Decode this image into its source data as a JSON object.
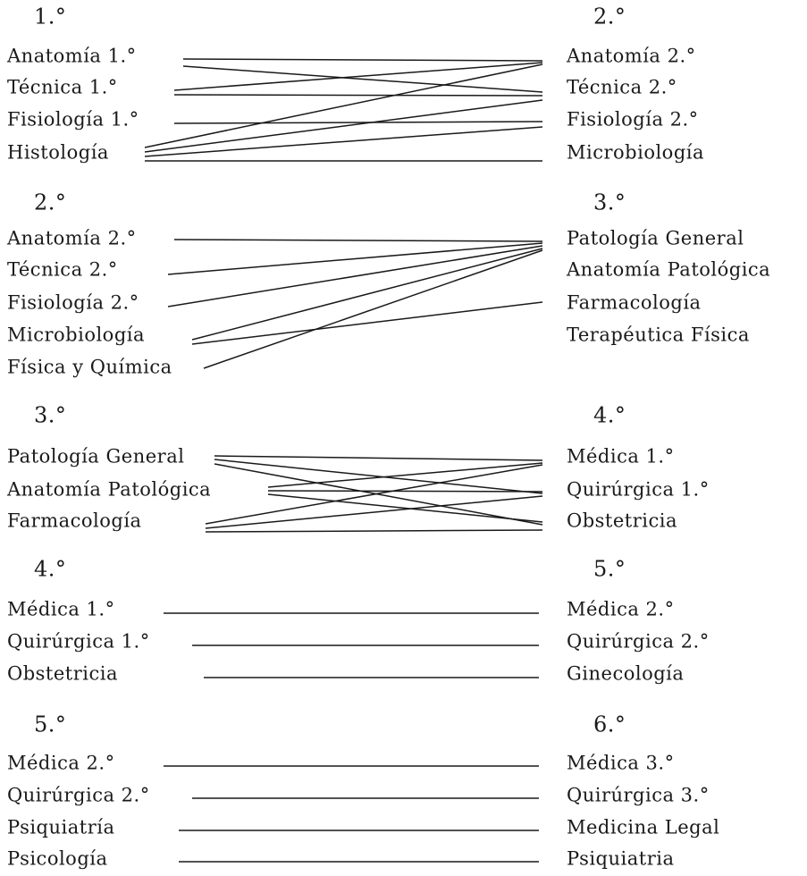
{
  "blocks": [
    {
      "left": {
        "header": "1.°",
        "items": [
          "Anatomía 1.°",
          "Técnica 1.°",
          "Fisiología 1.°",
          "Histología"
        ]
      },
      "right": {
        "header": "2.°",
        "items": [
          "Anatomía 2.°",
          "Técnica 2.°",
          "Fisiología 2.°",
          "Microbiología"
        ]
      }
    },
    {
      "left": {
        "header": "2.°",
        "items": [
          "Anatomía 2.°",
          "Técnica 2.°",
          "Fisiología 2.°",
          "Microbiología",
          "Física y Química"
        ]
      },
      "right": {
        "header": "3.°",
        "items": [
          "Patología General",
          "Anatomía Patológica",
          "Farmacología",
          "Terapéutica Física"
        ]
      }
    },
    {
      "left": {
        "header": "3.°",
        "items": [
          "Patología General",
          "Anatomía Patológica",
          "Farmacología"
        ]
      },
      "right": {
        "header": "4.°",
        "items": [
          "Médica 1.°",
          "Quirúrgica 1.°",
          "Obstetricia"
        ]
      }
    },
    {
      "left": {
        "header": "4.°",
        "items": [
          "Médica 1.°",
          "Quirúrgica 1.°",
          "Obstetricia"
        ]
      },
      "right": {
        "header": "5.°",
        "items": [
          "Médica 2.°",
          "Quirúrgica 2.°",
          "Ginecología"
        ]
      }
    },
    {
      "left": {
        "header": "5.°",
        "items": [
          "Médica 2.°",
          "Quirúrgica 2.°",
          "Psiquiatría",
          "Psicología"
        ]
      },
      "right": {
        "header": "6.°",
        "items": [
          "Médica 3.°",
          "Quirúrgica 3.°",
          "Medicina Legal",
          "Psiquiatria"
        ]
      }
    }
  ]
}
